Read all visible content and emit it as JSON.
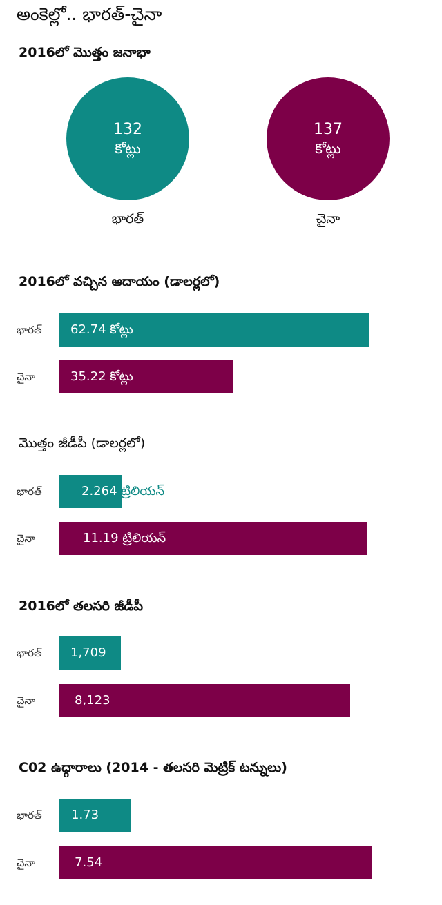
{
  "page": {
    "title": "అంకెల్లో.. భారత్-చైనా"
  },
  "colors": {
    "india": "#0e8a85",
    "china": "#7d0048",
    "india_text": "#0e8a85"
  },
  "population": {
    "title": "2016లో మొత్తం జనాభా",
    "india": {
      "value": "132",
      "unit": "కోట్లు",
      "label": "భారత్"
    },
    "china": {
      "value": "137",
      "unit": "కోట్లు",
      "label": "చైనా"
    }
  },
  "chart_data": [
    {
      "type": "bar",
      "title": "2016లో వచ్చిన ఆదాయం (డాలర్లలో)",
      "categories": [
        "భారత్",
        "చైనా"
      ],
      "values": [
        62.74,
        35.22
      ],
      "value_labels": [
        "62.74 కోట్లు",
        "35.22 కోట్లు"
      ]
    },
    {
      "type": "bar",
      "title": "మొత్తం జీడీపీ (డాలర్లలో)",
      "categories": [
        "భారత్",
        "చైనా"
      ],
      "values": [
        2.264,
        11.19
      ],
      "value_labels": [
        "2.264 ట్రిలియన్",
        "11.19 ట్రిలియన్"
      ]
    },
    {
      "type": "bar",
      "title": "2016లో తలసరి జీడీపీ",
      "categories": [
        "భారత్",
        "చైనా"
      ],
      "values": [
        1709,
        8123
      ],
      "value_labels": [
        "1,709",
        "8,123"
      ]
    },
    {
      "type": "bar",
      "title": "C02 ఉద్గారాలు (2014 - తలసరి మెట్రిక్ టన్నులు)",
      "categories": [
        "భారత్",
        "చైనా"
      ],
      "values": [
        1.73,
        7.54
      ],
      "value_labels": [
        "1.73",
        "7.54"
      ]
    }
  ]
}
